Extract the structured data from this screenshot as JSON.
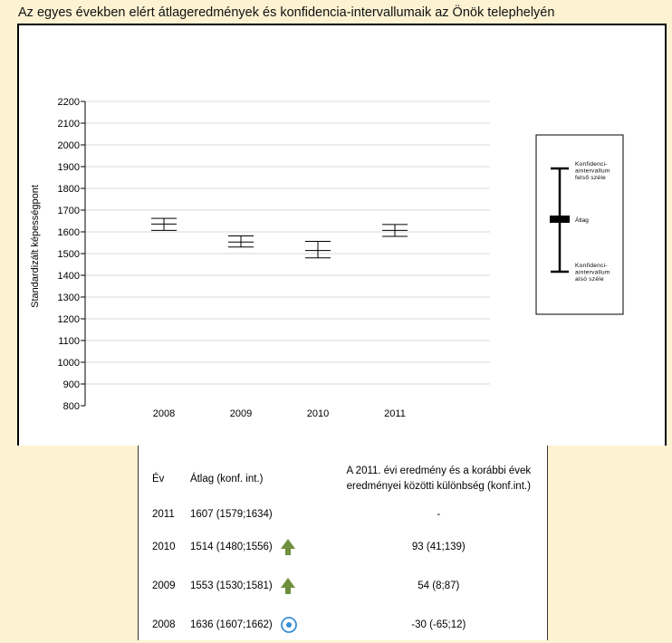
{
  "page": {
    "title": "Az egyes években elért átlageredmények és konfidencia-intervallumaik az Önök telephelyén"
  },
  "chart_data": {
    "type": "errorbar",
    "ylabel": "Standardizált képességpont",
    "ylim": [
      800,
      2200
    ],
    "yticks": [
      800,
      900,
      1000,
      1100,
      1200,
      1300,
      1400,
      1500,
      1600,
      1700,
      1800,
      1900,
      2000,
      2100,
      2200
    ],
    "grid": true,
    "categories": [
      "2008",
      "2009",
      "2010",
      "2011"
    ],
    "series": [
      {
        "mean": [
          1636,
          1553,
          1514,
          1607
        ],
        "ci_low": [
          1607,
          1530,
          1480,
          1579
        ],
        "ci_high": [
          1662,
          1581,
          1556,
          1634
        ]
      }
    ],
    "legend": {
      "position": "right",
      "upper_label": [
        "Konfidenci-",
        "aintervallum",
        "felső széle"
      ],
      "mean_label": "Átlag",
      "lower_label": [
        "Konfidenci-",
        "aintervallum",
        "alsó széle"
      ]
    }
  },
  "table": {
    "headers": {
      "year": "Év",
      "avg": "Átlag (konf. int.)",
      "diff_line1": "A 2011. évi eredmény és a korábbi évek",
      "diff_line2": "eredményei közötti különbség (konf.int.)"
    },
    "rows": [
      {
        "year": "2011",
        "avg": "1607 (1579;1634)",
        "icon": "",
        "diff": "-"
      },
      {
        "year": "2010",
        "avg": "1514 (1480;1556)",
        "icon": "up-arrow-icon",
        "diff": "93 (41;139)"
      },
      {
        "year": "2009",
        "avg": "1553 (1530;1581)",
        "icon": "up-arrow-icon",
        "diff": "54 (8;87)"
      },
      {
        "year": "2008",
        "avg": "1636 (1607;1662)",
        "icon": "circle-dot-icon",
        "diff": "-30 (-65;12)"
      }
    ],
    "colors": {
      "up_arrow": "#6f8f3c",
      "circle_dot": "#3a8fd6"
    }
  }
}
